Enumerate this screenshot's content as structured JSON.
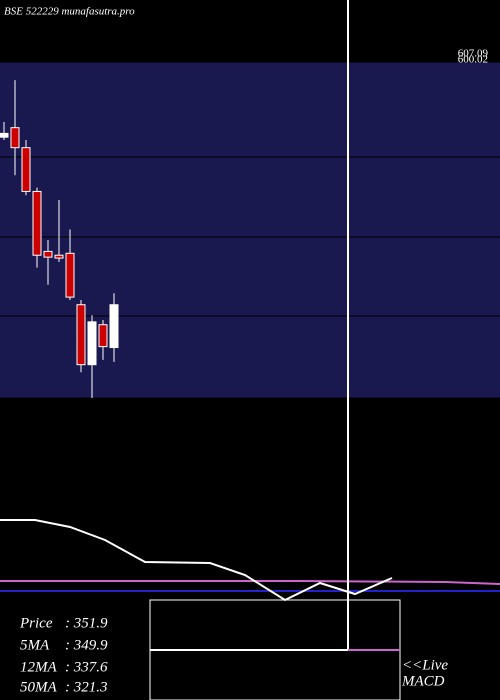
{
  "chart_data": {
    "type": "candlestick",
    "title": "BSE 522229 munafasutra.pro",
    "open": [
      528,
      538,
      517,
      471,
      408,
      404,
      406,
      352,
      289,
      331,
      307
    ],
    "close": [
      532,
      517,
      471,
      404,
      402,
      401,
      360,
      289,
      334,
      308,
      352
    ],
    "high": [
      544,
      588,
      525,
      475,
      420,
      462,
      431,
      357,
      341,
      336,
      364
    ],
    "low": [
      525,
      488,
      467,
      391,
      373,
      397,
      357,
      281,
      254,
      294,
      292
    ],
    "ylim": [
      254,
      607
    ],
    "up_color": "#ffffff",
    "down_color": "#cc0000",
    "price_labels": [
      "607.09",
      "600.02"
    ],
    "info": [
      [
        "Price",
        ": 351.9"
      ],
      [
        "5MA",
        ": 349.9"
      ],
      [
        "12MA",
        ": 337.6"
      ],
      [
        "50MA",
        ": 321.3"
      ]
    ],
    "live_label": "<<Live",
    "indicator_label": "MACD"
  }
}
